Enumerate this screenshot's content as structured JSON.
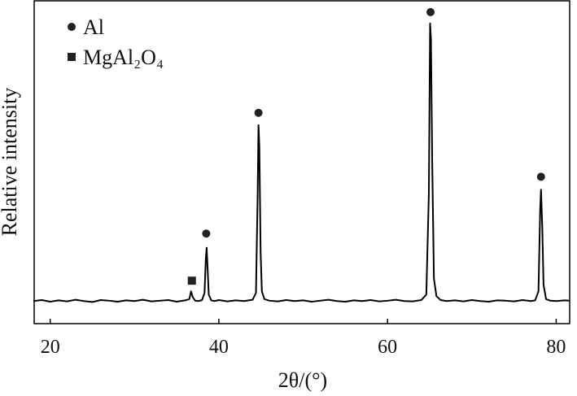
{
  "chart_data": {
    "type": "line",
    "xlabel": "2θ/(°)",
    "ylabel": "Relative intensity",
    "xlim": [
      18.1,
      81.6
    ],
    "xticks": [
      20,
      40,
      60,
      80
    ],
    "ylim": [
      0,
      100
    ],
    "line": {
      "color": "#000000",
      "x": [
        18,
        19,
        20,
        21,
        22,
        23,
        24,
        25,
        26,
        27,
        28,
        29,
        30,
        31,
        32,
        33,
        34,
        35,
        36,
        36.5,
        36.7,
        36.9,
        37.2,
        37.6,
        38.0,
        38.3,
        38.45,
        38.55,
        38.65,
        38.8,
        39.1,
        39.5,
        40,
        41,
        42,
        43,
        44,
        44.4,
        44.6,
        44.7,
        44.8,
        44.95,
        45.1,
        45.4,
        46,
        47,
        48,
        49,
        50,
        51,
        52,
        53,
        54,
        55,
        56,
        57,
        58,
        59,
        60,
        61,
        62,
        63,
        64,
        64.6,
        64.9,
        65.05,
        65.15,
        65.3,
        65.5,
        65.8,
        66.3,
        67,
        68,
        69,
        70,
        71,
        72,
        73,
        74,
        75,
        76,
        77,
        77.5,
        77.9,
        78.1,
        78.2,
        78.35,
        78.5,
        78.8,
        79.3,
        80,
        81,
        81.6
      ],
      "values": [
        7.0,
        7.3,
        6.8,
        7.2,
        6.9,
        7.4,
        7.0,
        6.7,
        7.3,
        7.1,
        6.8,
        7.2,
        7.0,
        7.4,
        6.9,
        7.1,
        7.3,
        6.8,
        7.2,
        7.6,
        10.0,
        8.2,
        7.1,
        7.0,
        7.3,
        9.5,
        20,
        23.5,
        18,
        9.0,
        7.2,
        7.0,
        7.3,
        6.9,
        7.2,
        7.0,
        7.4,
        9.5,
        40,
        61.5,
        55,
        22,
        10,
        7.6,
        7.1,
        6.9,
        7.3,
        7.0,
        7.2,
        6.8,
        7.1,
        7.4,
        7.0,
        6.8,
        7.2,
        7.0,
        7.3,
        6.9,
        7.1,
        7.4,
        7.0,
        6.9,
        7.3,
        9,
        40,
        93,
        88,
        50,
        14,
        8.5,
        7.3,
        7.0,
        7.2,
        6.9,
        7.3,
        7.0,
        6.8,
        7.2,
        7.1,
        6.9,
        7.3,
        7.0,
        7.2,
        10,
        35,
        41.5,
        30,
        12,
        7.6,
        7.1,
        7.0,
        7.2,
        7.1
      ]
    },
    "series": [
      {
        "name": "Al",
        "marker": "circle",
        "color": "#222222",
        "x": [
          38.5,
          44.7,
          65.1,
          78.2
        ],
        "values": [
          27.9,
          65.3,
          96.5,
          45.5
        ]
      },
      {
        "name": "MgAl₂O₄",
        "marker": "square",
        "color": "#222222",
        "x": [
          36.8
        ],
        "values": [
          13.3
        ]
      }
    ]
  }
}
